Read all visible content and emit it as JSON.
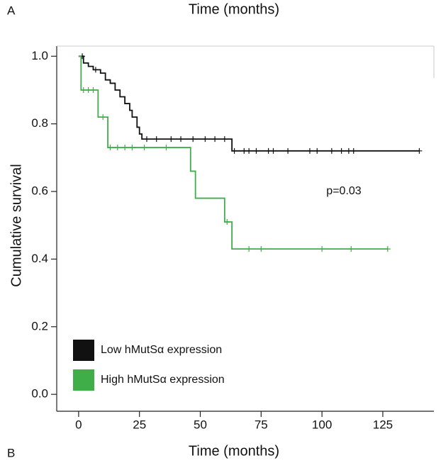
{
  "chart_data": {
    "type": "step",
    "title": "Time (months)",
    "panel_label": "A",
    "next_panel_label": "B",
    "x_label": "Time (months)",
    "y_label": "Cumulative survival",
    "annotation": "p=0.03",
    "xlim": [
      -9,
      146
    ],
    "ylim": [
      -0.05,
      1.03
    ],
    "xticks": [
      0,
      25,
      50,
      75,
      100,
      125
    ],
    "yticks": [
      {
        "value": 0,
        "label": "0.0"
      },
      {
        "value": 0.2,
        "label": "0.2"
      },
      {
        "value": 0.4,
        "label": "0.4"
      },
      {
        "value": 0.6,
        "label": "0.6"
      },
      {
        "value": 0.8,
        "label": "0.8"
      },
      {
        "value": 1,
        "label": "1.0"
      }
    ],
    "series": [
      {
        "name": "Low hMutSα expression",
        "color": "#111111",
        "x": [
          0,
          2,
          4,
          6,
          9,
          11,
          13,
          15,
          17,
          19,
          21,
          22,
          24,
          25,
          26,
          63,
          140
        ],
        "values": [
          1.0,
          0.98,
          0.97,
          0.96,
          0.95,
          0.93,
          0.92,
          0.9,
          0.88,
          0.86,
          0.84,
          0.82,
          0.79,
          0.77,
          0.755,
          0.72,
          0.72
        ],
        "censor_x": [
          1.5,
          7,
          28,
          32,
          38,
          42,
          47,
          52,
          56,
          60,
          64,
          68,
          70,
          73,
          78,
          80,
          86,
          95,
          98,
          104,
          108,
          111,
          113,
          140
        ],
        "censor_values": [
          1.0,
          0.96,
          0.755,
          0.755,
          0.755,
          0.755,
          0.755,
          0.755,
          0.755,
          0.755,
          0.72,
          0.72,
          0.72,
          0.72,
          0.72,
          0.72,
          0.72,
          0.72,
          0.72,
          0.72,
          0.72,
          0.72,
          0.72,
          0.72
        ]
      },
      {
        "name": "High hMutSα expression",
        "color": "#3fae49",
        "x": [
          0,
          1,
          8,
          12,
          46,
          48,
          60,
          63,
          127
        ],
        "values": [
          1.0,
          0.9,
          0.82,
          0.73,
          0.66,
          0.58,
          0.51,
          0.43,
          0.43
        ],
        "censor_x": [
          2,
          4,
          6,
          10,
          13,
          16,
          19,
          22,
          27,
          36,
          61,
          70,
          75,
          100,
          112,
          127
        ],
        "censor_values": [
          0.9,
          0.9,
          0.9,
          0.82,
          0.73,
          0.73,
          0.73,
          0.73,
          0.73,
          0.73,
          0.51,
          0.43,
          0.43,
          0.43,
          0.43,
          0.43
        ]
      }
    ]
  }
}
